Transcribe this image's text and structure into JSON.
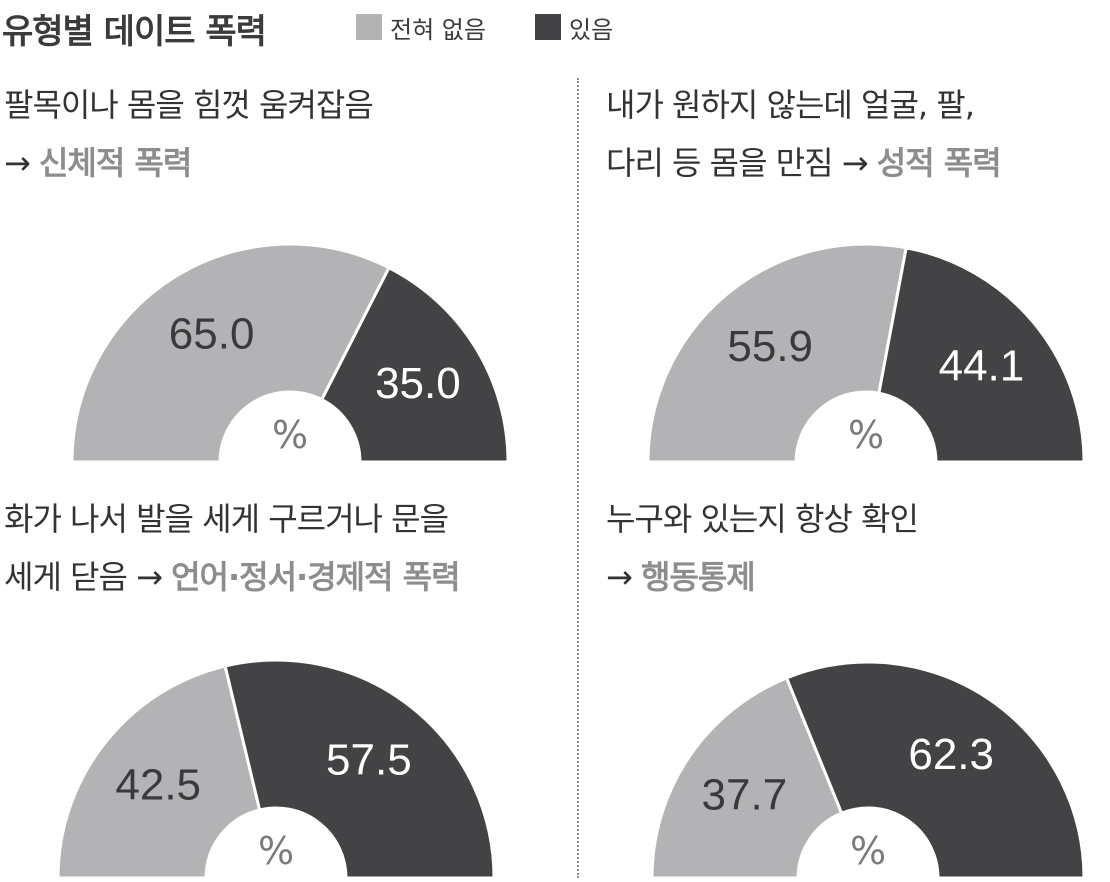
{
  "title": "유형별 데이트 폭력",
  "legend": [
    {
      "label": "전혀 없음",
      "color": "#b3b3b6"
    },
    {
      "label": "있음",
      "color": "#434346"
    }
  ],
  "arrow": "→",
  "unit": "%",
  "chart_data": [
    {
      "type": "pie",
      "subtype": "semicircle-donut",
      "question_lines": [
        "팔목이나 몸을 힘껏 움켜잡음"
      ],
      "category": "신체적 폭력",
      "category_on_new_line": true,
      "slices": [
        {
          "name": "전혀 없음",
          "value": 65.0
        },
        {
          "name": "있음",
          "value": 35.0
        }
      ]
    },
    {
      "type": "pie",
      "subtype": "semicircle-donut",
      "question_lines": [
        "내가 원하지 않는데 얼굴, 팔,",
        "다리 등 몸을 만짐"
      ],
      "category": "성적  폭력",
      "category_on_new_line": false,
      "slices": [
        {
          "name": "전혀 없음",
          "value": 55.9
        },
        {
          "name": "있음",
          "value": 44.1
        }
      ]
    },
    {
      "type": "pie",
      "subtype": "semicircle-donut",
      "question_lines": [
        "화가 나서 발을 세게 구르거나 문을",
        "세게 닫음"
      ],
      "category": "언어·정서·경제적 폭력",
      "category_on_new_line": false,
      "slices": [
        {
          "name": "전혀 없음",
          "value": 42.5
        },
        {
          "name": "있음",
          "value": 57.5
        }
      ]
    },
    {
      "type": "pie",
      "subtype": "semicircle-donut",
      "question_lines": [
        "누구와 있는지 항상 확인"
      ],
      "category": "행동통제",
      "category_on_new_line": true,
      "slices": [
        {
          "name": "전혀 없음",
          "value": 37.7
        },
        {
          "name": "있음",
          "value": 62.3
        }
      ]
    }
  ]
}
